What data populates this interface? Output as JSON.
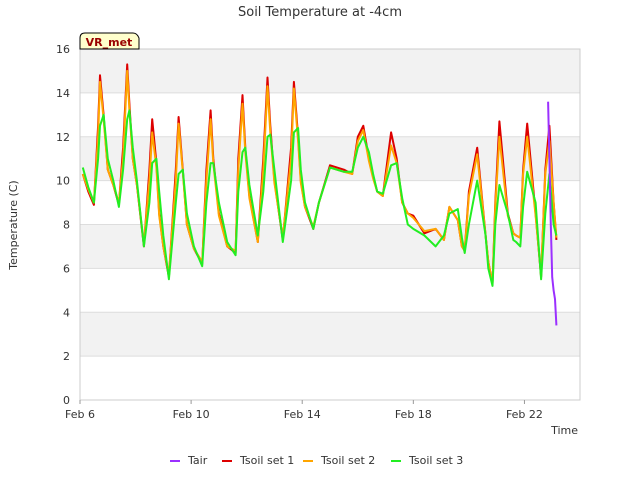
{
  "chart_data": {
    "type": "line",
    "title": "Soil Temperature at -4cm",
    "xlabel": "Time",
    "ylabel": "Temperature (C)",
    "site_label": "VR_met",
    "xlim": [
      0,
      18
    ],
    "ylim": [
      0,
      16
    ],
    "y_ticks": [
      0,
      2,
      4,
      6,
      8,
      10,
      12,
      14,
      16
    ],
    "x_ticks": [
      {
        "value": 0,
        "label": "Feb 6"
      },
      {
        "value": 4,
        "label": "Feb 10"
      },
      {
        "value": 8,
        "label": "Feb 14"
      },
      {
        "value": 12,
        "label": "Feb 18"
      },
      {
        "value": 16,
        "label": "Feb 22"
      }
    ],
    "x_unit": "days since Feb 6",
    "grid": true,
    "legend_position": "bottom",
    "series": [
      {
        "name": "Tair",
        "color": "#9b30ff",
        "x": [
          16.85,
          16.9,
          16.95,
          17.0,
          17.05,
          17.1,
          17.15
        ],
        "y": [
          13.6,
          11.0,
          8.0,
          5.6,
          5.0,
          4.6,
          3.4
        ]
      },
      {
        "name": "Tsoil set 1",
        "color": "#dd0000",
        "x": [
          0.1,
          0.3,
          0.5,
          0.65,
          0.72,
          0.85,
          1.0,
          1.2,
          1.4,
          1.55,
          1.7,
          1.78,
          1.9,
          2.05,
          2.3,
          2.5,
          2.6,
          2.75,
          2.85,
          3.0,
          3.2,
          3.45,
          3.55,
          3.7,
          3.85,
          4.1,
          4.4,
          4.55,
          4.7,
          4.8,
          5.0,
          5.3,
          5.6,
          5.7,
          5.85,
          5.95,
          6.1,
          6.4,
          6.6,
          6.75,
          6.85,
          7.0,
          7.3,
          7.6,
          7.7,
          7.85,
          7.95,
          8.1,
          8.4,
          8.6,
          9.0,
          9.5,
          9.8,
          10.0,
          10.2,
          10.4,
          10.55,
          10.7,
          10.9,
          11.2,
          11.4,
          11.6,
          11.8,
          12.0,
          12.4,
          12.8,
          13.1,
          13.3,
          13.6,
          13.75,
          13.85,
          14.0,
          14.3,
          14.6,
          14.7,
          14.85,
          14.95,
          15.1,
          15.4,
          15.6,
          15.7,
          15.85,
          15.95,
          16.1,
          16.4,
          16.6,
          16.75,
          16.9,
          17.05,
          17.15
        ],
        "y": [
          10.3,
          9.5,
          8.9,
          12.5,
          14.8,
          13.0,
          10.5,
          9.8,
          8.9,
          11.5,
          15.3,
          13.5,
          11.0,
          9.8,
          7.0,
          10.5,
          12.8,
          10.8,
          8.5,
          7.0,
          5.6,
          10.5,
          12.9,
          10.5,
          8.0,
          6.9,
          6.2,
          10.5,
          13.2,
          11.0,
          8.5,
          7.0,
          6.7,
          11.0,
          13.9,
          11.5,
          9.3,
          7.2,
          11.0,
          14.7,
          12.5,
          10.0,
          7.3,
          11.5,
          14.5,
          12.0,
          10.0,
          8.8,
          7.8,
          9.0,
          10.7,
          10.5,
          10.3,
          12.0,
          12.5,
          11.0,
          10.2,
          9.5,
          9.3,
          12.2,
          11.0,
          9.0,
          8.5,
          8.4,
          7.6,
          7.8,
          7.3,
          8.8,
          8.2,
          7.0,
          6.8,
          9.5,
          11.5,
          7.5,
          6.3,
          5.3,
          9.0,
          12.7,
          8.5,
          7.6,
          7.5,
          7.4,
          10.5,
          12.6,
          8.5,
          5.6,
          10.5,
          12.5,
          9.0,
          7.3
        ]
      },
      {
        "name": "Tsoil set 2",
        "color": "#ffa500",
        "x": [
          0.1,
          0.3,
          0.5,
          0.65,
          0.72,
          0.85,
          1.0,
          1.2,
          1.4,
          1.55,
          1.7,
          1.78,
          1.9,
          2.05,
          2.3,
          2.5,
          2.6,
          2.75,
          2.85,
          3.0,
          3.2,
          3.45,
          3.55,
          3.7,
          3.85,
          4.1,
          4.4,
          4.55,
          4.7,
          4.8,
          5.0,
          5.3,
          5.6,
          5.7,
          5.85,
          5.95,
          6.1,
          6.4,
          6.6,
          6.75,
          6.85,
          7.0,
          7.3,
          7.6,
          7.7,
          7.85,
          7.95,
          8.1,
          8.4,
          8.6,
          9.0,
          9.5,
          9.8,
          10.0,
          10.2,
          10.4,
          10.55,
          10.7,
          10.9,
          11.2,
          11.4,
          11.6,
          11.8,
          12.0,
          12.4,
          12.8,
          13.1,
          13.3,
          13.6,
          13.75,
          13.85,
          14.0,
          14.3,
          14.6,
          14.7,
          14.85,
          14.95,
          15.1,
          15.4,
          15.6,
          15.7,
          15.85,
          15.95,
          16.1,
          16.4,
          16.6,
          16.75,
          16.9,
          17.05,
          17.15
        ],
        "y": [
          10.3,
          9.6,
          9.0,
          12.0,
          14.5,
          12.8,
          10.5,
          9.8,
          9.0,
          11.0,
          15.0,
          13.2,
          11.0,
          9.8,
          7.1,
          10.0,
          12.2,
          10.6,
          8.4,
          7.0,
          5.7,
          10.0,
          12.6,
          10.4,
          8.0,
          6.9,
          6.3,
          10.0,
          12.8,
          10.8,
          8.4,
          7.0,
          6.8,
          10.5,
          13.5,
          11.3,
          9.2,
          7.2,
          10.5,
          14.3,
          12.2,
          9.9,
          7.4,
          11.0,
          14.2,
          11.8,
          9.9,
          8.8,
          7.9,
          9.0,
          10.6,
          10.4,
          10.3,
          11.8,
          12.3,
          10.9,
          10.1,
          9.5,
          9.3,
          11.6,
          10.8,
          9.0,
          8.5,
          8.3,
          7.7,
          7.8,
          7.3,
          8.8,
          8.2,
          7.0,
          6.8,
          9.3,
          11.2,
          7.5,
          6.3,
          5.3,
          8.8,
          12.0,
          8.4,
          7.6,
          7.5,
          7.4,
          10.3,
          12.0,
          8.4,
          5.7,
          10.3,
          11.8,
          9.0,
          7.4
        ]
      },
      {
        "name": "Tsoil set 3",
        "color": "#22ee22",
        "x": [
          0.1,
          0.3,
          0.5,
          0.65,
          0.72,
          0.85,
          1.0,
          1.2,
          1.4,
          1.55,
          1.7,
          1.78,
          1.9,
          2.05,
          2.3,
          2.5,
          2.6,
          2.75,
          2.85,
          3.0,
          3.2,
          3.45,
          3.55,
          3.7,
          3.85,
          4.1,
          4.4,
          4.55,
          4.7,
          4.8,
          5.0,
          5.3,
          5.6,
          5.7,
          5.85,
          5.95,
          6.1,
          6.4,
          6.6,
          6.75,
          6.85,
          7.0,
          7.3,
          7.6,
          7.7,
          7.85,
          7.95,
          8.1,
          8.4,
          8.6,
          9.0,
          9.5,
          9.8,
          10.0,
          10.2,
          10.4,
          10.55,
          10.7,
          10.9,
          11.2,
          11.4,
          11.6,
          11.8,
          12.0,
          12.4,
          12.8,
          13.1,
          13.3,
          13.6,
          13.75,
          13.85,
          14.0,
          14.3,
          14.6,
          14.7,
          14.85,
          14.95,
          15.1,
          15.4,
          15.6,
          15.7,
          15.85,
          15.95,
          16.1,
          16.4,
          16.6,
          16.75,
          16.9,
          17.05,
          17.15
        ],
        "y": [
          10.6,
          9.7,
          9.0,
          11.0,
          12.5,
          13.0,
          11.0,
          10.0,
          8.8,
          10.5,
          12.8,
          13.2,
          11.5,
          10.0,
          7.0,
          9.0,
          10.8,
          11.0,
          9.5,
          7.5,
          5.5,
          9.0,
          10.3,
          10.5,
          8.5,
          7.0,
          6.1,
          9.0,
          10.8,
          10.8,
          9.0,
          7.2,
          6.6,
          9.5,
          11.3,
          11.5,
          9.8,
          7.5,
          9.5,
          12.0,
          12.1,
          10.5,
          7.2,
          10.0,
          12.2,
          12.4,
          10.5,
          9.0,
          7.8,
          9.0,
          10.6,
          10.4,
          10.4,
          11.5,
          12.0,
          11.3,
          10.3,
          9.5,
          9.4,
          10.7,
          10.8,
          9.2,
          8.0,
          7.8,
          7.5,
          7.0,
          7.5,
          8.5,
          8.7,
          7.4,
          6.7,
          8.0,
          10.0,
          7.5,
          6.0,
          5.2,
          8.0,
          9.8,
          8.5,
          7.3,
          7.2,
          7.0,
          8.8,
          10.4,
          9.0,
          5.5,
          8.5,
          10.3,
          8.0,
          7.5
        ]
      }
    ]
  }
}
